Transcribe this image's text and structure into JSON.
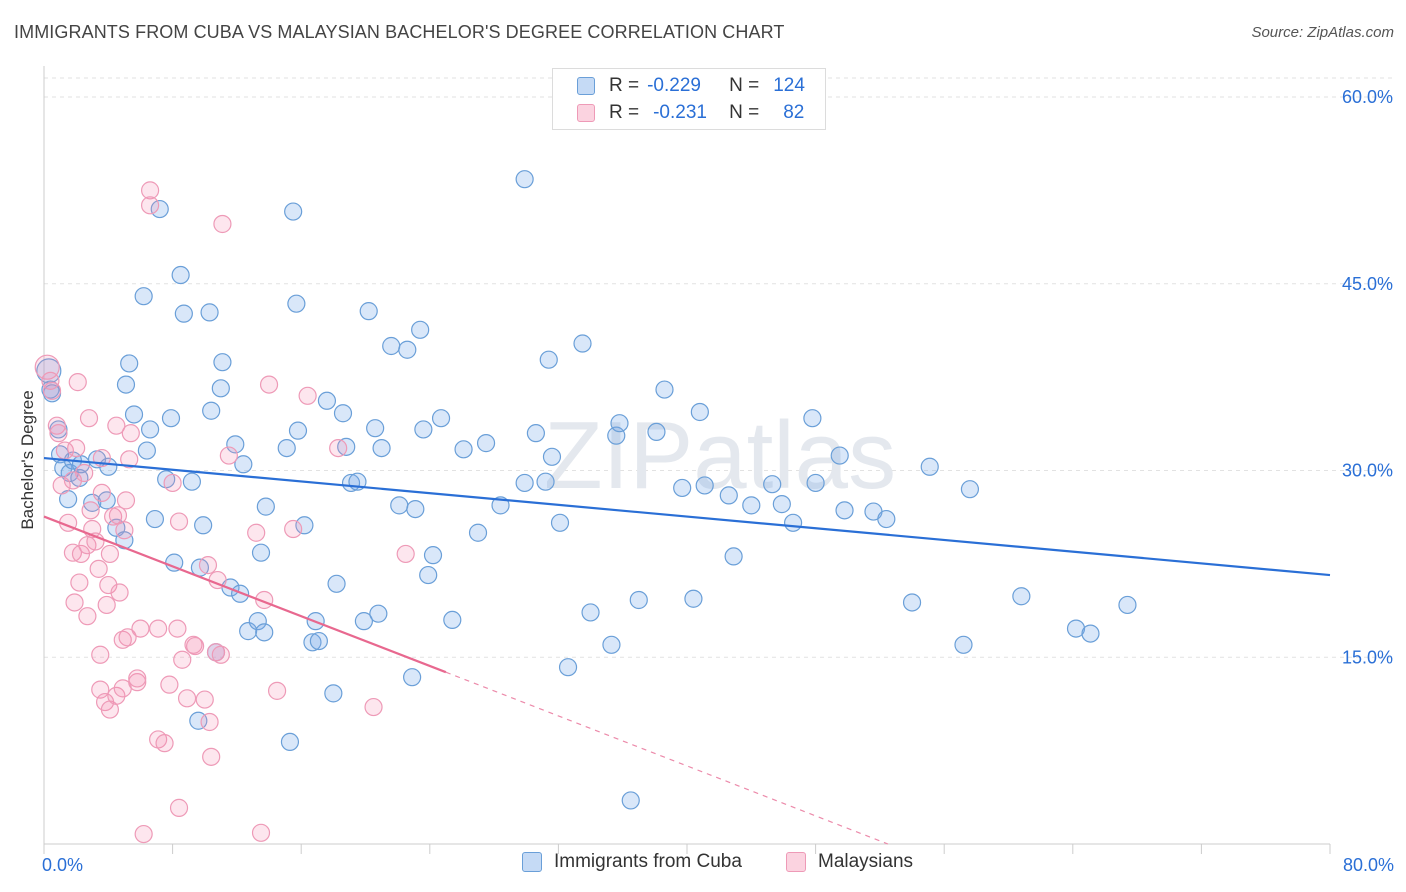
{
  "title": "IMMIGRANTS FROM CUBA VS MALAYSIAN BACHELOR'S DEGREE CORRELATION CHART",
  "source": "Source: ZipAtlas.com",
  "watermark": "ZIPatlas",
  "legend": {
    "rows": [
      {
        "r_label": "R =",
        "r_value": "-0.229",
        "n_label": "N =",
        "n_value": "124",
        "color": "#5b9bd5"
      },
      {
        "r_label": "R =",
        "r_value": "-0.231",
        "n_label": "N =",
        "n_value": "82",
        "color": "#f48fb1"
      }
    ]
  },
  "bottom_legend": [
    "Immigrants from Cuba",
    "Malaysians"
  ],
  "chart_data": {
    "type": "scatter",
    "xlabel": "",
    "ylabel": "Bachelor's Degree",
    "xlim": [
      0,
      80
    ],
    "ylim": [
      0,
      60
    ],
    "x_tick_labels": [
      {
        "value": 0,
        "label": "0.0%"
      },
      {
        "value": 80,
        "label": "80.0%"
      }
    ],
    "y_tick_labels": [
      {
        "value": 60,
        "label": "60.0%"
      },
      {
        "value": 45,
        "label": "45.0%"
      },
      {
        "value": 30,
        "label": "30.0%"
      },
      {
        "value": 15,
        "label": "15.0%"
      }
    ],
    "series": [
      {
        "name": "Immigrants from Cuba",
        "color": "#5b9bd5",
        "trend": {
          "x0": 0,
          "y0": 31.0,
          "x1": 80,
          "y1": 21.6
        },
        "points": [
          [
            0.3,
            38.0
          ],
          [
            0.4,
            36.5
          ],
          [
            0.5,
            36.2
          ],
          [
            0.9,
            33.3
          ],
          [
            1.0,
            31.3
          ],
          [
            1.2,
            30.2
          ],
          [
            1.5,
            27.7
          ],
          [
            1.6,
            29.8
          ],
          [
            1.8,
            30.8
          ],
          [
            2.2,
            29.4
          ],
          [
            2.3,
            30.5
          ],
          [
            3.0,
            27.4
          ],
          [
            3.3,
            30.9
          ],
          [
            3.9,
            27.6
          ],
          [
            4.0,
            30.3
          ],
          [
            4.5,
            25.4
          ],
          [
            5.0,
            24.4
          ],
          [
            5.1,
            36.9
          ],
          [
            5.3,
            38.6
          ],
          [
            5.6,
            34.5
          ],
          [
            6.2,
            44.0
          ],
          [
            6.4,
            31.6
          ],
          [
            6.6,
            33.3
          ],
          [
            6.9,
            26.1
          ],
          [
            7.2,
            51.0
          ],
          [
            7.6,
            29.3
          ],
          [
            7.9,
            34.2
          ],
          [
            8.1,
            22.6
          ],
          [
            8.5,
            45.7
          ],
          [
            8.7,
            42.6
          ],
          [
            9.2,
            29.1
          ],
          [
            9.6,
            9.9
          ],
          [
            9.7,
            22.2
          ],
          [
            9.9,
            25.6
          ],
          [
            10.3,
            42.7
          ],
          [
            10.4,
            34.8
          ],
          [
            10.7,
            15.4
          ],
          [
            11.0,
            36.6
          ],
          [
            11.1,
            38.7
          ],
          [
            11.6,
            20.6
          ],
          [
            11.9,
            32.1
          ],
          [
            12.2,
            20.1
          ],
          [
            12.4,
            30.5
          ],
          [
            12.7,
            17.1
          ],
          [
            13.3,
            17.9
          ],
          [
            13.5,
            23.4
          ],
          [
            13.7,
            17.0
          ],
          [
            13.8,
            27.1
          ],
          [
            15.1,
            31.8
          ],
          [
            15.3,
            8.2
          ],
          [
            15.5,
            50.8
          ],
          [
            15.7,
            43.4
          ],
          [
            15.8,
            33.2
          ],
          [
            16.2,
            25.6
          ],
          [
            16.7,
            16.2
          ],
          [
            16.9,
            17.9
          ],
          [
            17.1,
            16.3
          ],
          [
            17.6,
            35.6
          ],
          [
            18.0,
            12.1
          ],
          [
            18.2,
            20.9
          ],
          [
            18.6,
            34.6
          ],
          [
            18.8,
            31.9
          ],
          [
            19.1,
            29.0
          ],
          [
            19.5,
            29.1
          ],
          [
            19.9,
            17.9
          ],
          [
            20.2,
            42.8
          ],
          [
            20.6,
            33.4
          ],
          [
            20.8,
            18.5
          ],
          [
            21.0,
            31.8
          ],
          [
            21.6,
            40.0
          ],
          [
            22.1,
            27.2
          ],
          [
            22.6,
            39.7
          ],
          [
            22.9,
            13.4
          ],
          [
            23.1,
            26.9
          ],
          [
            23.4,
            41.3
          ],
          [
            23.6,
            33.3
          ],
          [
            23.9,
            21.6
          ],
          [
            24.2,
            23.2
          ],
          [
            24.7,
            34.2
          ],
          [
            25.4,
            18.0
          ],
          [
            26.1,
            31.7
          ],
          [
            27.0,
            25.0
          ],
          [
            27.5,
            32.2
          ],
          [
            28.4,
            27.2
          ],
          [
            29.9,
            53.4
          ],
          [
            29.9,
            29.0
          ],
          [
            30.6,
            33.0
          ],
          [
            31.2,
            29.1
          ],
          [
            31.4,
            38.9
          ],
          [
            31.6,
            31.1
          ],
          [
            32.1,
            25.8
          ],
          [
            32.6,
            14.2
          ],
          [
            33.5,
            40.2
          ],
          [
            34.0,
            18.6
          ],
          [
            35.3,
            16.0
          ],
          [
            35.6,
            32.8
          ],
          [
            35.8,
            33.8
          ],
          [
            36.5,
            3.5
          ],
          [
            37.0,
            19.6
          ],
          [
            38.1,
            33.1
          ],
          [
            38.6,
            36.5
          ],
          [
            39.7,
            28.6
          ],
          [
            40.4,
            19.7
          ],
          [
            40.8,
            34.7
          ],
          [
            41.1,
            28.8
          ],
          [
            42.6,
            28.0
          ],
          [
            42.9,
            23.1
          ],
          [
            44.0,
            27.2
          ],
          [
            45.3,
            28.9
          ],
          [
            45.9,
            27.3
          ],
          [
            46.6,
            25.8
          ],
          [
            47.8,
            34.2
          ],
          [
            48.0,
            29.0
          ],
          [
            49.5,
            31.2
          ],
          [
            49.8,
            26.8
          ],
          [
            51.6,
            26.7
          ],
          [
            52.4,
            26.1
          ],
          [
            54.0,
            19.4
          ],
          [
            55.1,
            30.3
          ],
          [
            57.2,
            16.0
          ],
          [
            57.6,
            28.5
          ],
          [
            60.8,
            19.9
          ],
          [
            64.2,
            17.3
          ],
          [
            65.1,
            16.9
          ],
          [
            67.4,
            19.2
          ]
        ]
      },
      {
        "name": "Malaysians",
        "color": "#f48fb1",
        "trend": {
          "x0": 0,
          "y0": 26.3,
          "x1": 25,
          "y1": 13.8
        },
        "trend_extension": {
          "x0": 25,
          "y0": 13.8,
          "x1": 52.5,
          "y1": 0.0
        },
        "points": [
          [
            0.2,
            38.3
          ],
          [
            0.4,
            37.2
          ],
          [
            0.5,
            36.4
          ],
          [
            0.8,
            33.6
          ],
          [
            0.9,
            33.0
          ],
          [
            1.1,
            28.8
          ],
          [
            1.3,
            31.6
          ],
          [
            1.5,
            25.8
          ],
          [
            1.8,
            29.2
          ],
          [
            1.8,
            23.4
          ],
          [
            1.9,
            19.4
          ],
          [
            2.0,
            31.8
          ],
          [
            2.1,
            37.1
          ],
          [
            2.2,
            21.0
          ],
          [
            2.3,
            23.3
          ],
          [
            2.5,
            29.8
          ],
          [
            2.7,
            24.0
          ],
          [
            2.7,
            18.3
          ],
          [
            2.8,
            34.2
          ],
          [
            2.9,
            26.8
          ],
          [
            3.0,
            25.3
          ],
          [
            3.2,
            24.3
          ],
          [
            3.4,
            22.1
          ],
          [
            3.5,
            12.4
          ],
          [
            3.5,
            15.2
          ],
          [
            3.6,
            31.0
          ],
          [
            3.6,
            28.2
          ],
          [
            3.8,
            11.4
          ],
          [
            3.9,
            19.2
          ],
          [
            4.0,
            20.8
          ],
          [
            4.1,
            23.3
          ],
          [
            4.1,
            10.8
          ],
          [
            4.3,
            26.3
          ],
          [
            4.5,
            11.9
          ],
          [
            4.5,
            33.6
          ],
          [
            4.6,
            26.4
          ],
          [
            4.7,
            20.2
          ],
          [
            4.9,
            12.5
          ],
          [
            4.9,
            16.4
          ],
          [
            5.0,
            25.2
          ],
          [
            5.1,
            27.6
          ],
          [
            5.2,
            16.6
          ],
          [
            5.3,
            30.9
          ],
          [
            5.4,
            33.0
          ],
          [
            5.8,
            13.0
          ],
          [
            5.8,
            13.3
          ],
          [
            6.0,
            17.3
          ],
          [
            6.2,
            0.8
          ],
          [
            6.6,
            52.5
          ],
          [
            6.6,
            51.3
          ],
          [
            7.1,
            17.3
          ],
          [
            7.1,
            8.4
          ],
          [
            7.5,
            8.1
          ],
          [
            7.8,
            12.8
          ],
          [
            8.0,
            29.0
          ],
          [
            8.3,
            17.3
          ],
          [
            8.4,
            25.9
          ],
          [
            8.4,
            2.9
          ],
          [
            8.6,
            14.8
          ],
          [
            8.9,
            11.7
          ],
          [
            9.3,
            16.0
          ],
          [
            9.4,
            15.9
          ],
          [
            10.0,
            11.6
          ],
          [
            10.2,
            22.4
          ],
          [
            10.3,
            9.8
          ],
          [
            10.4,
            7.0
          ],
          [
            10.7,
            15.4
          ],
          [
            10.8,
            21.2
          ],
          [
            11.0,
            15.2
          ],
          [
            11.1,
            49.8
          ],
          [
            11.5,
            31.2
          ],
          [
            13.2,
            25.0
          ],
          [
            13.5,
            0.9
          ],
          [
            13.7,
            19.6
          ],
          [
            14.0,
            36.9
          ],
          [
            14.5,
            12.3
          ],
          [
            15.5,
            25.3
          ],
          [
            16.4,
            36.0
          ],
          [
            18.3,
            31.8
          ],
          [
            20.5,
            11.0
          ],
          [
            22.5,
            23.3
          ]
        ]
      }
    ]
  }
}
